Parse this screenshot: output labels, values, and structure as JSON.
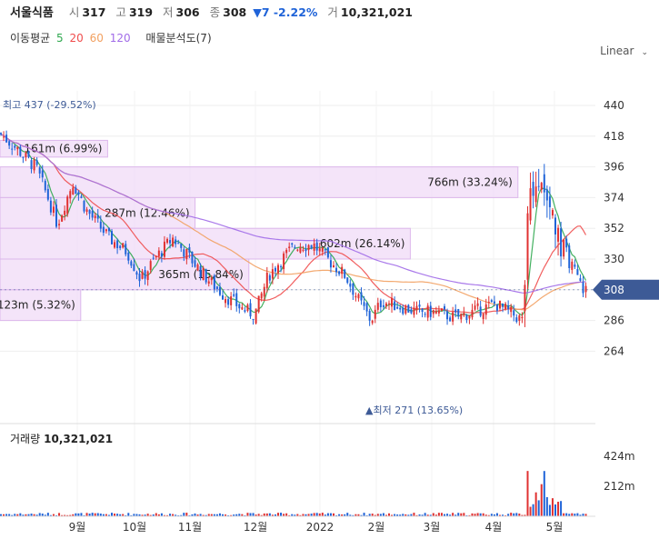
{
  "header": {
    "name": "서울식품",
    "open_label": "시",
    "open": "317",
    "high_label": "고",
    "high": "319",
    "low_label": "저",
    "low": "306",
    "close_label": "종",
    "close": "308",
    "change": "▼7 -2.22%",
    "volume_label": "거",
    "volume": "10,321,021"
  },
  "ma_legend": {
    "label": "이동평균",
    "periods": [
      {
        "text": "5",
        "color": "#2fa84f"
      },
      {
        "text": "20",
        "color": "#f04c4c"
      },
      {
        "text": "60",
        "color": "#f2a060"
      },
      {
        "text": "120",
        "color": "#a16ce8"
      }
    ],
    "volume_profile": "매물분석도(7)"
  },
  "scale_selector": "Linear",
  "chart_data": {
    "type": "candlestick",
    "y_ticks": [
      "440",
      "418",
      "396",
      "374",
      "352",
      "330",
      "308",
      "286",
      "264"
    ],
    "price_range": [
      264,
      440
    ],
    "x_ticks": [
      "9월",
      "10월",
      "11월",
      "12월",
      "2022",
      "2월",
      "3월",
      "4월",
      "5월"
    ],
    "last_price": "308",
    "highest_label": "최고 437 (-29.52%)",
    "lowest_label": "▲최저 271 (13.65%)",
    "volume_profile_bars": [
      {
        "label": "161m (6.99%)",
        "low": 403,
        "high": 415,
        "fraction": 0.16
      },
      {
        "label": "766m (33.24%)",
        "low": 374,
        "high": 396,
        "fraction": 0.77
      },
      {
        "label": "287m (12.46%)",
        "low": 352,
        "high": 374,
        "fraction": 0.29
      },
      {
        "label": "602m (26.14%)",
        "low": 330,
        "high": 352,
        "fraction": 0.61
      },
      {
        "label": "365m (15.84%)",
        "low": 308,
        "high": 330,
        "fraction": 0.37
      },
      {
        "label": "123m (5.32%)",
        "low": 286,
        "high": 308,
        "fraction": 0.12
      }
    ],
    "volume_title": "거래량",
    "volume_value": "10,321,021",
    "volume_ticks": [
      "424m",
      "212m"
    ],
    "colors": {
      "up": "#e03131",
      "down": "#1f63d8",
      "ma5": "#2fa84f",
      "ma20": "#f04c4c",
      "ma60": "#f2a060",
      "ma120": "#a16ce8",
      "profile": "#f0d9f7",
      "profile_border": "#dcb7ec",
      "tag": "#3d5a96"
    }
  }
}
